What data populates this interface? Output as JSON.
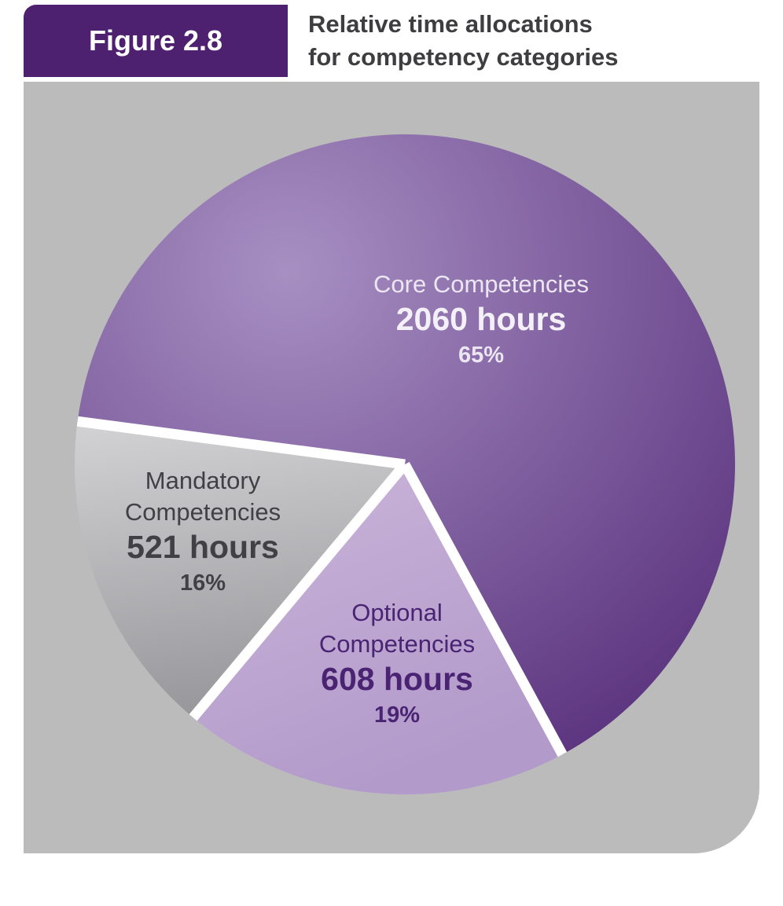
{
  "figure": {
    "badge": "Figure 2.8",
    "title_line1": "Relative time allocations",
    "title_line2": "for competency categories"
  },
  "colors": {
    "badge_bg": "#4e2170",
    "badge_text": "#ffffff",
    "title_text": "#3e3d40",
    "panel_bg": "#bcbbbc",
    "separator": "#ffffff",
    "core_text_light": "#ece6f2",
    "core_text_bright": "#f4f0f8",
    "mandatory_text": "#414044",
    "optional_text": "#4a2373"
  },
  "chart_data": {
    "type": "pie",
    "title": "Relative time allocations for competency categories",
    "start_angle_deg": 187.5,
    "legend_position": "none",
    "slices": [
      {
        "id": "core",
        "label": "Core Competencies",
        "label_lines": [
          "Core Competencies"
        ],
        "hours": 2060,
        "hours_label": "2060 hours",
        "percent": 65,
        "percent_label": "65%",
        "gradient": {
          "from": "#a78fc2",
          "to": "#4f2574"
        }
      },
      {
        "id": "optional",
        "label": "Optional Competencies",
        "label_lines": [
          "Optional",
          "Competencies"
        ],
        "hours": 608,
        "hours_label": "608 hours",
        "percent": 19,
        "percent_label": "19%",
        "gradient": {
          "from": "#cbb6da",
          "to": "#b29aca"
        }
      },
      {
        "id": "mandatory",
        "label": "Mandatory Competencies",
        "label_lines": [
          "Mandatory",
          "Competencies"
        ],
        "hours": 521,
        "hours_label": "521 hours",
        "percent": 16,
        "percent_label": "16%",
        "gradient": {
          "from": "#d2d1d3",
          "to": "#98979b"
        }
      }
    ]
  }
}
